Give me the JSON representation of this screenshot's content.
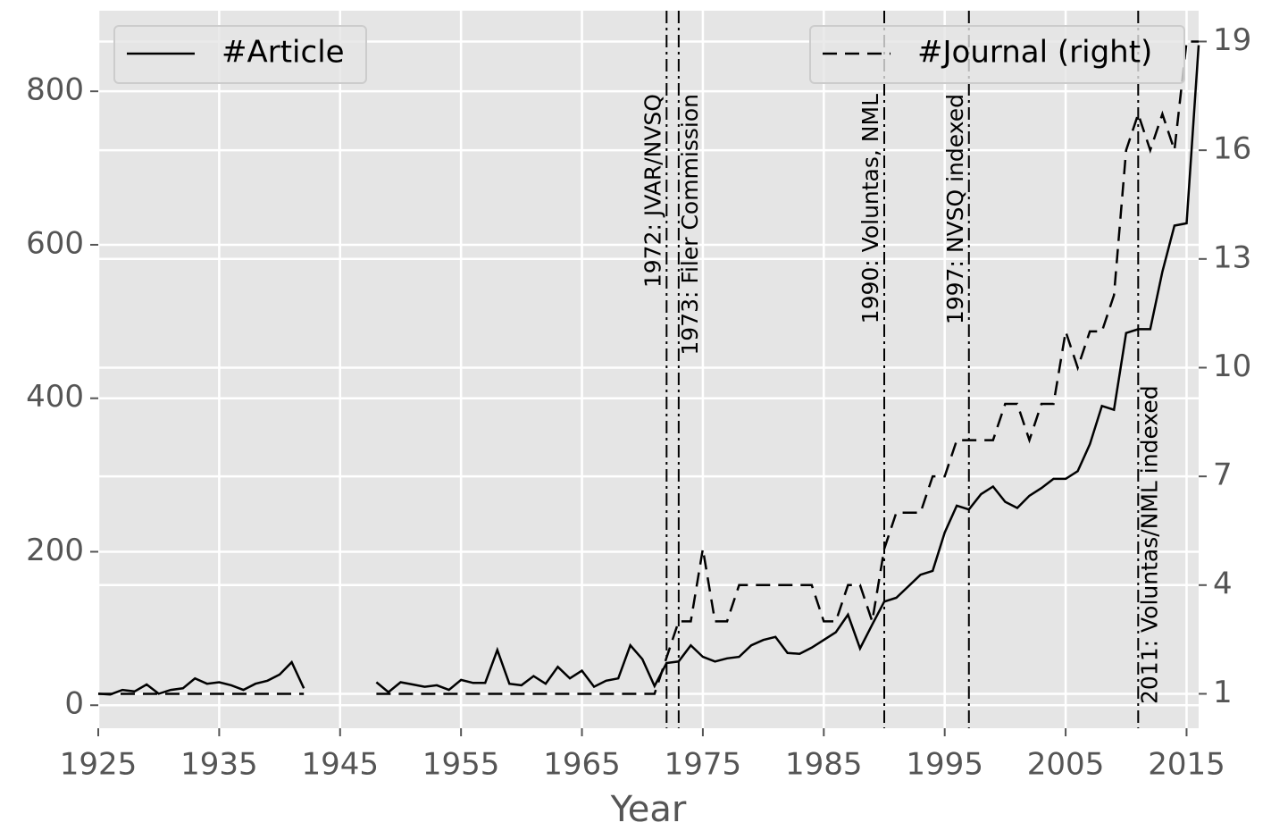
{
  "chart_data": {
    "type": "line",
    "xlabel": "Year",
    "x": [
      1925,
      1926,
      1927,
      1928,
      1929,
      1930,
      1931,
      1932,
      1933,
      1934,
      1935,
      1936,
      1937,
      1938,
      1939,
      1940,
      1941,
      1942,
      1943,
      1944,
      1945,
      1946,
      1947,
      1948,
      1949,
      1950,
      1951,
      1952,
      1953,
      1954,
      1955,
      1956,
      1957,
      1958,
      1959,
      1960,
      1961,
      1962,
      1963,
      1964,
      1965,
      1966,
      1967,
      1968,
      1969,
      1970,
      1971,
      1972,
      1973,
      1974,
      1975,
      1976,
      1977,
      1978,
      1979,
      1980,
      1981,
      1982,
      1983,
      1984,
      1985,
      1986,
      1987,
      1988,
      1989,
      1990,
      1991,
      1992,
      1993,
      1994,
      1995,
      1996,
      1997,
      1998,
      1999,
      2000,
      2001,
      2002,
      2003,
      2004,
      2005,
      2006,
      2007,
      2008,
      2009,
      2010,
      2011,
      2012,
      2013,
      2014,
      2015,
      2016
    ],
    "series": [
      {
        "name": "#Article",
        "color": "#000000",
        "dash": false,
        "values": [
          15,
          14,
          20,
          18,
          27,
          15,
          20,
          22,
          35,
          28,
          30,
          26,
          20,
          28,
          32,
          40,
          56,
          22,
          null,
          null,
          null,
          null,
          null,
          30,
          17,
          30,
          27,
          24,
          26,
          20,
          33,
          29,
          29,
          72,
          28,
          26,
          38,
          28,
          50,
          35,
          45,
          24,
          32,
          35,
          78,
          60,
          25,
          55,
          57,
          78,
          63,
          57,
          61,
          63,
          78,
          85,
          89,
          68,
          67,
          75,
          85,
          95,
          118,
          74,
          105,
          135,
          140,
          155,
          170,
          175,
          225,
          260,
          255,
          275,
          285,
          265,
          257,
          273,
          283,
          295,
          295,
          305,
          340,
          390,
          385,
          485,
          490,
          490,
          565,
          625,
          628,
          860
        ]
      },
      {
        "name": "#Journal (right)",
        "color": "#000000",
        "dash": true,
        "axis": "y2",
        "values": [
          1,
          1,
          1,
          1,
          1,
          1,
          1,
          1,
          1,
          1,
          1,
          1,
          1,
          1,
          1,
          1,
          1,
          1,
          null,
          null,
          null,
          null,
          null,
          1,
          1,
          1,
          1,
          1,
          1,
          1,
          1,
          1,
          1,
          1,
          1,
          1,
          1,
          1,
          1,
          1,
          1,
          1,
          1,
          1,
          1,
          1,
          1,
          2,
          3,
          3,
          5,
          3,
          3,
          4,
          4,
          4,
          4,
          4,
          4,
          4,
          3,
          3,
          4,
          4,
          3,
          5,
          6,
          6,
          6,
          7,
          7,
          8,
          8,
          8,
          8,
          9,
          9,
          8,
          9,
          9,
          11,
          10,
          11,
          11,
          12,
          16,
          17,
          16,
          17,
          16,
          19,
          19
        ]
      }
    ],
    "annotations": [
      {
        "x": 1972,
        "text": "1972: JVAR/NVSQ"
      },
      {
        "x": 1973,
        "text": "1973: Filer Commission"
      },
      {
        "x": 1990,
        "text": "1990: Voluntas, NML"
      },
      {
        "x": 1997,
        "text": "1997: NVSQ indexed"
      },
      {
        "x": 2011,
        "text": "2011: Voluntas/NML indexed"
      }
    ],
    "xlim": [
      1925,
      2016
    ],
    "xticks": [
      1925,
      1935,
      1945,
      1955,
      1965,
      1975,
      1985,
      1995,
      2005,
      2015
    ],
    "ylim": [
      -30,
      905
    ],
    "yticks": [
      0,
      200,
      400,
      600,
      800
    ],
    "y2lim": [
      0.05,
      19.85
    ],
    "y2ticks": [
      1,
      4,
      7,
      10,
      13,
      16,
      19
    ],
    "grid": true
  }
}
